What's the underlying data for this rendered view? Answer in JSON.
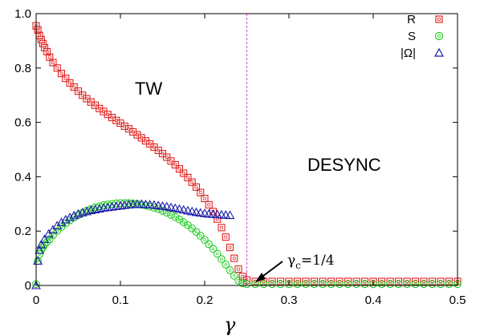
{
  "chart_data": {
    "type": "scatter",
    "xlabel": "γ",
    "ylabel": "",
    "xlim": [
      0,
      0.5
    ],
    "ylim": [
      0,
      1.0
    ],
    "xticks": [
      "0",
      "0.1",
      "0.2",
      "0.3",
      "0.4",
      "0.5"
    ],
    "yticks": [
      "0",
      "0.2",
      "0.4",
      "0.6",
      "0.8",
      "1.0"
    ],
    "grid": false,
    "legend_position": "top-right",
    "critical_x": 0.25,
    "critical_line_color": "#e040e0",
    "regions": [
      "TW",
      "DESYNC"
    ],
    "annotation": {
      "text_main": "γ",
      "text_sub": "c",
      "text_tail": "=1/4",
      "target_x": 0.25,
      "target_y": 0.0
    },
    "series": [
      {
        "name": "R",
        "marker": "square",
        "color": "#e0201e",
        "points": [
          [
            0.0,
            0.955
          ],
          [
            0.002,
            0.94
          ],
          [
            0.004,
            0.92
          ],
          [
            0.006,
            0.905
          ],
          [
            0.008,
            0.89
          ],
          [
            0.01,
            0.875
          ],
          [
            0.013,
            0.86
          ],
          [
            0.016,
            0.84
          ],
          [
            0.02,
            0.82
          ],
          [
            0.025,
            0.8
          ],
          [
            0.03,
            0.78
          ],
          [
            0.035,
            0.762
          ],
          [
            0.04,
            0.745
          ],
          [
            0.045,
            0.73
          ],
          [
            0.05,
            0.715
          ],
          [
            0.055,
            0.7
          ],
          [
            0.06,
            0.687
          ],
          [
            0.065,
            0.675
          ],
          [
            0.07,
            0.663
          ],
          [
            0.075,
            0.651
          ],
          [
            0.08,
            0.64
          ],
          [
            0.085,
            0.629
          ],
          [
            0.09,
            0.618
          ],
          [
            0.095,
            0.607
          ],
          [
            0.1,
            0.597
          ],
          [
            0.105,
            0.586
          ],
          [
            0.11,
            0.576
          ],
          [
            0.115,
            0.565
          ],
          [
            0.12,
            0.554
          ],
          [
            0.125,
            0.543
          ],
          [
            0.13,
            0.532
          ],
          [
            0.135,
            0.521
          ],
          [
            0.14,
            0.509
          ],
          [
            0.145,
            0.497
          ],
          [
            0.15,
            0.485
          ],
          [
            0.155,
            0.472
          ],
          [
            0.16,
            0.458
          ],
          [
            0.165,
            0.444
          ],
          [
            0.17,
            0.429
          ],
          [
            0.175,
            0.413
          ],
          [
            0.18,
            0.397
          ],
          [
            0.185,
            0.38
          ],
          [
            0.19,
            0.362
          ],
          [
            0.195,
            0.342
          ],
          [
            0.2,
            0.32
          ],
          [
            0.205,
            0.297
          ],
          [
            0.21,
            0.272
          ],
          [
            0.215,
            0.244
          ],
          [
            0.22,
            0.213
          ],
          [
            0.225,
            0.178
          ],
          [
            0.23,
            0.14
          ],
          [
            0.235,
            0.1
          ],
          [
            0.24,
            0.06
          ],
          [
            0.245,
            0.033
          ],
          [
            0.25,
            0.02
          ],
          [
            0.26,
            0.015
          ],
          [
            0.27,
            0.015
          ],
          [
            0.28,
            0.015
          ],
          [
            0.29,
            0.015
          ],
          [
            0.3,
            0.015
          ],
          [
            0.31,
            0.015
          ],
          [
            0.32,
            0.015
          ],
          [
            0.33,
            0.015
          ],
          [
            0.34,
            0.015
          ],
          [
            0.35,
            0.015
          ],
          [
            0.36,
            0.015
          ],
          [
            0.37,
            0.015
          ],
          [
            0.38,
            0.015
          ],
          [
            0.39,
            0.015
          ],
          [
            0.4,
            0.015
          ],
          [
            0.41,
            0.015
          ],
          [
            0.42,
            0.015
          ],
          [
            0.43,
            0.015
          ],
          [
            0.44,
            0.015
          ],
          [
            0.45,
            0.015
          ],
          [
            0.46,
            0.015
          ],
          [
            0.47,
            0.015
          ],
          [
            0.48,
            0.015
          ],
          [
            0.49,
            0.015
          ],
          [
            0.5,
            0.015
          ]
        ]
      },
      {
        "name": "S",
        "marker": "circle",
        "color": "#22cc22",
        "points": [
          [
            0.0,
            0.005
          ],
          [
            0.002,
            0.09
          ],
          [
            0.004,
            0.115
          ],
          [
            0.006,
            0.13
          ],
          [
            0.008,
            0.14
          ],
          [
            0.01,
            0.15
          ],
          [
            0.013,
            0.16
          ],
          [
            0.016,
            0.17
          ],
          [
            0.02,
            0.185
          ],
          [
            0.025,
            0.2
          ],
          [
            0.03,
            0.215
          ],
          [
            0.035,
            0.228
          ],
          [
            0.04,
            0.24
          ],
          [
            0.045,
            0.25
          ],
          [
            0.05,
            0.259
          ],
          [
            0.055,
            0.267
          ],
          [
            0.06,
            0.275
          ],
          [
            0.065,
            0.281
          ],
          [
            0.07,
            0.287
          ],
          [
            0.075,
            0.291
          ],
          [
            0.08,
            0.295
          ],
          [
            0.085,
            0.298
          ],
          [
            0.09,
            0.3
          ],
          [
            0.095,
            0.302
          ],
          [
            0.1,
            0.303
          ],
          [
            0.105,
            0.303
          ],
          [
            0.11,
            0.303
          ],
          [
            0.115,
            0.302
          ],
          [
            0.12,
            0.3
          ],
          [
            0.125,
            0.297
          ],
          [
            0.13,
            0.294
          ],
          [
            0.135,
            0.29
          ],
          [
            0.14,
            0.286
          ],
          [
            0.145,
            0.281
          ],
          [
            0.15,
            0.275
          ],
          [
            0.155,
            0.268
          ],
          [
            0.16,
            0.26
          ],
          [
            0.165,
            0.252
          ],
          [
            0.17,
            0.243
          ],
          [
            0.175,
            0.233
          ],
          [
            0.18,
            0.222
          ],
          [
            0.185,
            0.21
          ],
          [
            0.19,
            0.197
          ],
          [
            0.195,
            0.183
          ],
          [
            0.2,
            0.168
          ],
          [
            0.205,
            0.152
          ],
          [
            0.21,
            0.135
          ],
          [
            0.215,
            0.117
          ],
          [
            0.22,
            0.097
          ],
          [
            0.225,
            0.077
          ],
          [
            0.23,
            0.056
          ],
          [
            0.235,
            0.036
          ],
          [
            0.24,
            0.018
          ],
          [
            0.245,
            0.008
          ],
          [
            0.25,
            0.005
          ],
          [
            0.26,
            0.005
          ],
          [
            0.27,
            0.005
          ],
          [
            0.28,
            0.005
          ],
          [
            0.29,
            0.005
          ],
          [
            0.3,
            0.005
          ],
          [
            0.31,
            0.005
          ],
          [
            0.32,
            0.005
          ],
          [
            0.33,
            0.005
          ],
          [
            0.34,
            0.005
          ],
          [
            0.35,
            0.005
          ],
          [
            0.36,
            0.005
          ],
          [
            0.37,
            0.005
          ],
          [
            0.38,
            0.005
          ],
          [
            0.39,
            0.005
          ],
          [
            0.4,
            0.005
          ],
          [
            0.41,
            0.005
          ],
          [
            0.42,
            0.005
          ],
          [
            0.43,
            0.005
          ],
          [
            0.44,
            0.005
          ],
          [
            0.45,
            0.005
          ],
          [
            0.46,
            0.005
          ],
          [
            0.47,
            0.005
          ],
          [
            0.48,
            0.005
          ],
          [
            0.49,
            0.005
          ],
          [
            0.5,
            0.005
          ]
        ]
      },
      {
        "name": "|Ω|",
        "marker": "triangle",
        "color": "#1a1aaa",
        "points": [
          [
            0.0,
            0.0
          ],
          [
            0.002,
            0.09
          ],
          [
            0.004,
            0.13
          ],
          [
            0.006,
            0.15
          ],
          [
            0.01,
            0.17
          ],
          [
            0.015,
            0.19
          ],
          [
            0.02,
            0.205
          ],
          [
            0.025,
            0.22
          ],
          [
            0.03,
            0.232
          ],
          [
            0.035,
            0.242
          ],
          [
            0.04,
            0.25
          ],
          [
            0.045,
            0.257
          ],
          [
            0.05,
            0.263
          ],
          [
            0.055,
            0.268
          ],
          [
            0.06,
            0.272
          ],
          [
            0.065,
            0.276
          ],
          [
            0.07,
            0.279
          ],
          [
            0.075,
            0.282
          ],
          [
            0.08,
            0.285
          ],
          [
            0.085,
            0.287
          ],
          [
            0.09,
            0.289
          ],
          [
            0.095,
            0.291
          ],
          [
            0.1,
            0.293
          ],
          [
            0.105,
            0.295
          ],
          [
            0.11,
            0.297
          ],
          [
            0.115,
            0.298
          ],
          [
            0.12,
            0.299
          ],
          [
            0.125,
            0.299
          ],
          [
            0.13,
            0.298
          ],
          [
            0.135,
            0.297
          ],
          [
            0.14,
            0.296
          ],
          [
            0.145,
            0.294
          ],
          [
            0.15,
            0.292
          ],
          [
            0.155,
            0.29
          ],
          [
            0.16,
            0.287
          ],
          [
            0.165,
            0.284
          ],
          [
            0.17,
            0.281
          ],
          [
            0.175,
            0.278
          ],
          [
            0.18,
            0.275
          ],
          [
            0.185,
            0.272
          ],
          [
            0.19,
            0.269
          ],
          [
            0.195,
            0.267
          ],
          [
            0.2,
            0.265
          ],
          [
            0.205,
            0.263
          ],
          [
            0.21,
            0.262
          ],
          [
            0.215,
            0.261
          ],
          [
            0.22,
            0.26
          ],
          [
            0.225,
            0.259
          ],
          [
            0.23,
            0.258
          ]
        ]
      }
    ]
  }
}
